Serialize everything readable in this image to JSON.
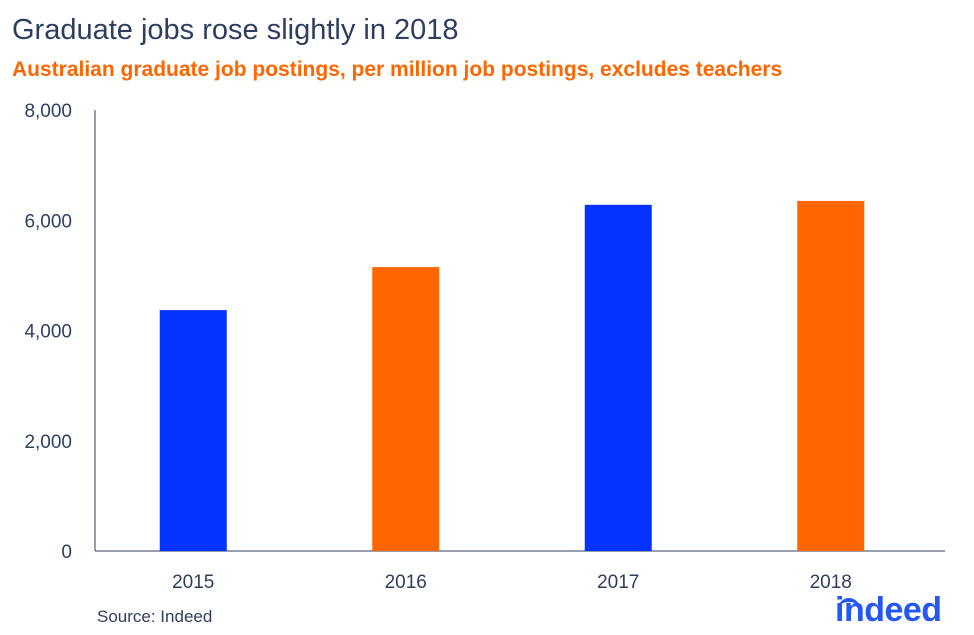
{
  "chart_data": {
    "type": "bar",
    "title": "Graduate jobs rose slightly in 2018",
    "subtitle": "Australian graduate job postings, per million job postings, excludes teachers",
    "categories": [
      "2015",
      "2016",
      "2017",
      "2018"
    ],
    "values": [
      4370,
      5150,
      6280,
      6350
    ],
    "colors": [
      "#0433ff",
      "#ff6600",
      "#0433ff",
      "#ff6600"
    ],
    "ylim": [
      0,
      8000
    ],
    "yticks": [
      0,
      2000,
      4000,
      6000,
      8000
    ],
    "ytick_labels": [
      "0",
      "2,000",
      "4,000",
      "6,000",
      "8,000"
    ],
    "xlabel": "",
    "ylabel": "",
    "grid": false
  },
  "source": "Source: Indeed",
  "logo": "indeed"
}
